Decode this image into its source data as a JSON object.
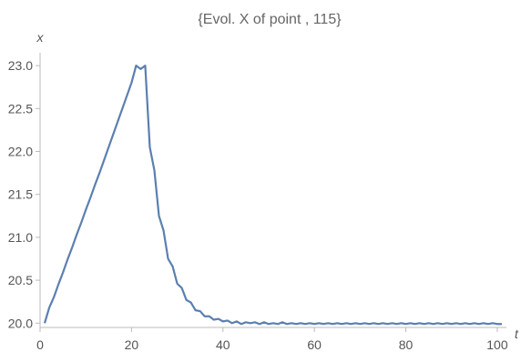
{
  "chart_data": {
    "type": "line",
    "title": "{Evol. X of point , 115}",
    "xlabel": "t",
    "ylabel": "x",
    "xlim": [
      0,
      102
    ],
    "ylim": [
      19.95,
      23.15
    ],
    "xticks": [
      0,
      20,
      40,
      60,
      80,
      100
    ],
    "xtick_labels": [
      "0",
      "20",
      "40",
      "60",
      "80",
      "100"
    ],
    "yticks": [
      20.0,
      20.5,
      21.0,
      21.5,
      22.0,
      22.5,
      23.0
    ],
    "ytick_labels": [
      "20.0",
      "20.5",
      "21.0",
      "21.5",
      "22.0",
      "22.5",
      "23.0"
    ],
    "grid": false,
    "series_color": "#5b7fb0",
    "series": [
      {
        "x": [
          1,
          2,
          3,
          4,
          5,
          6,
          7,
          8,
          9,
          10,
          11,
          12,
          13,
          14,
          15,
          16,
          17,
          18,
          19,
          20,
          21,
          22,
          23,
          24,
          25,
          26,
          27,
          28,
          29,
          30,
          31,
          32,
          33,
          34,
          35,
          36,
          37,
          38,
          39,
          40,
          41,
          42,
          43,
          44,
          45,
          46,
          47,
          48,
          49,
          50,
          51,
          52,
          53,
          54,
          55,
          56,
          57,
          58,
          59,
          60,
          61,
          62,
          63,
          64,
          65,
          66,
          67,
          68,
          69,
          70,
          71,
          72,
          73,
          74,
          75,
          76,
          77,
          78,
          79,
          80,
          81,
          82,
          83,
          84,
          85,
          86,
          87,
          88,
          89,
          90,
          91,
          92,
          93,
          94,
          95,
          96,
          97,
          98,
          99,
          100,
          101
        ],
        "values": [
          20.0,
          20.18,
          20.3,
          20.45,
          20.59,
          20.74,
          20.88,
          21.03,
          21.17,
          21.32,
          21.46,
          21.61,
          21.75,
          21.9,
          22.05,
          22.2,
          22.35,
          22.5,
          22.65,
          22.8,
          23.0,
          22.96,
          23.0,
          22.05,
          21.78,
          21.25,
          21.08,
          20.75,
          20.66,
          20.46,
          20.41,
          20.27,
          20.24,
          20.15,
          20.14,
          20.08,
          20.08,
          20.04,
          20.05,
          20.02,
          20.03,
          20.0,
          20.02,
          19.99,
          20.01,
          20.0,
          20.01,
          19.99,
          20.01,
          19.99,
          20.0,
          19.99,
          20.01,
          19.99,
          20.0,
          19.99,
          20.0,
          19.99,
          20.0,
          19.99,
          20.0,
          19.99,
          20.0,
          19.99,
          20.0,
          19.99,
          20.0,
          19.99,
          20.0,
          19.99,
          20.0,
          19.99,
          20.0,
          19.99,
          20.0,
          19.99,
          20.0,
          19.99,
          20.0,
          19.99,
          20.0,
          19.99,
          20.0,
          19.99,
          20.0,
          19.99,
          20.0,
          19.99,
          20.0,
          19.99,
          20.0,
          19.99,
          20.0,
          19.99,
          20.0,
          19.99,
          20.0,
          19.99,
          20.0,
          19.99,
          19.99
        ]
      }
    ]
  }
}
